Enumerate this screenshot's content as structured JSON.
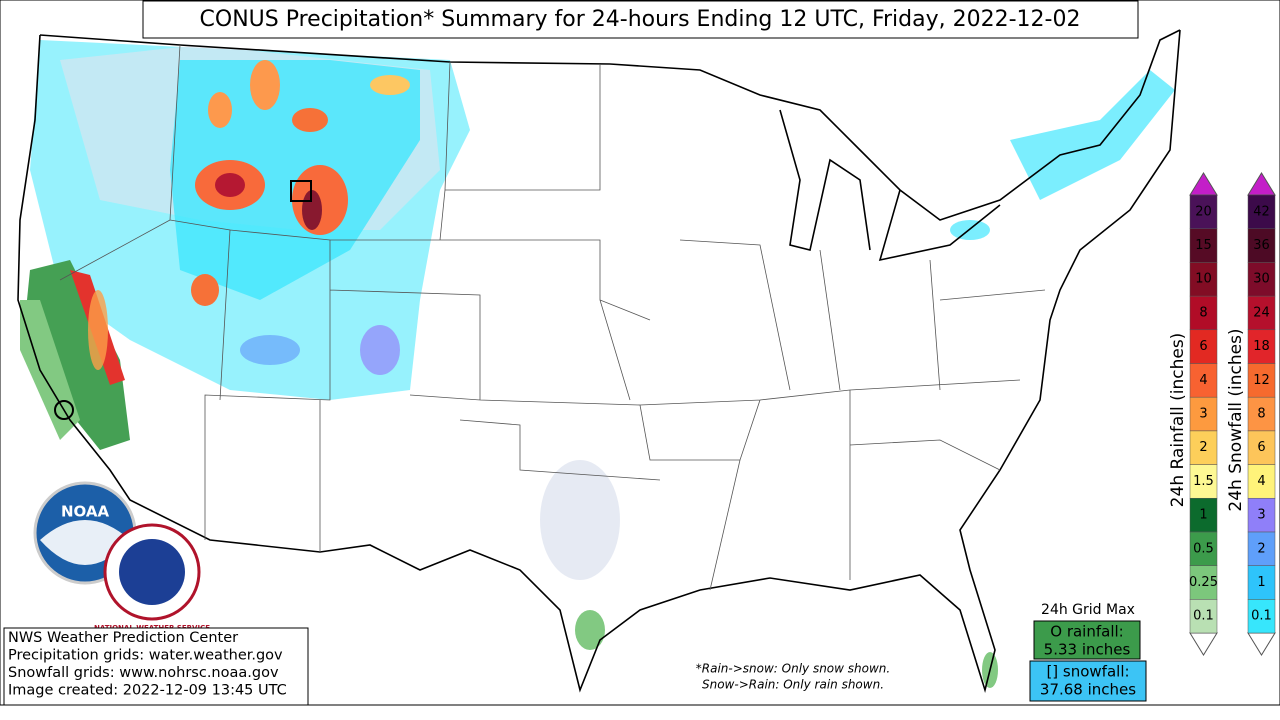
{
  "title": "CONUS Precipitation* Summary for 24-hours Ending 12 UTC, Friday, 2022-12-02",
  "credits": [
    "NWS Weather Prediction Center",
    "Precipitation grids: water.weather.gov",
    "Snowfall grids: www.nohrsc.noaa.gov",
    "Image created: 2022-12-09 13:45 UTC"
  ],
  "note": [
    "*Rain->snow: Only snow shown.",
    "Snow->Rain: Only rain shown."
  ],
  "grid_max": {
    "title": "24h Grid Max",
    "rainfall": [
      "O rainfall:",
      "5.33 inches"
    ],
    "snowfall": [
      "[] snowfall:",
      "37.68 inches"
    ]
  },
  "logos": {
    "noaa": "NOAA",
    "nws": "NATIONAL WEATHER SERVICE"
  },
  "rain_scale": {
    "label": "24h Rainfall (inches)",
    "levels": [
      {
        "label": "0.1",
        "color": "#b9e0b3"
      },
      {
        "label": "0.25",
        "color": "#7cc77c"
      },
      {
        "label": "0.5",
        "color": "#3c9b4b"
      },
      {
        "label": "1",
        "color": "#0c6b2d"
      },
      {
        "label": "1.5",
        "color": "#fdf894"
      },
      {
        "label": "2",
        "color": "#fdcf5a"
      },
      {
        "label": "3",
        "color": "#fd9a3f"
      },
      {
        "label": "4",
        "color": "#f86231"
      },
      {
        "label": "6",
        "color": "#e22922"
      },
      {
        "label": "8",
        "color": "#b10c27"
      },
      {
        "label": "10",
        "color": "#820d24"
      },
      {
        "label": "15",
        "color": "#560b25"
      },
      {
        "label": "20",
        "color": "#4a1258"
      }
    ]
  },
  "snow_scale": {
    "label": "24h Snowfall (inches)",
    "levels": [
      {
        "label": "0.1",
        "color": "#37e6fc"
      },
      {
        "label": "1",
        "color": "#2ec4fb"
      },
      {
        "label": "2",
        "color": "#5f9ffa"
      },
      {
        "label": "3",
        "color": "#8f7ff9"
      },
      {
        "label": "4",
        "color": "#fff37a"
      },
      {
        "label": "6",
        "color": "#fdc55a"
      },
      {
        "label": "8",
        "color": "#fd9444"
      },
      {
        "label": "12",
        "color": "#f66a2e"
      },
      {
        "label": "18",
        "color": "#e1252a"
      },
      {
        "label": "24",
        "color": "#b5102c"
      },
      {
        "label": "30",
        "color": "#7d0c2a"
      },
      {
        "label": "36",
        "color": "#4d0a25"
      },
      {
        "label": "42",
        "color": "#3c0a4a"
      }
    ]
  }
}
